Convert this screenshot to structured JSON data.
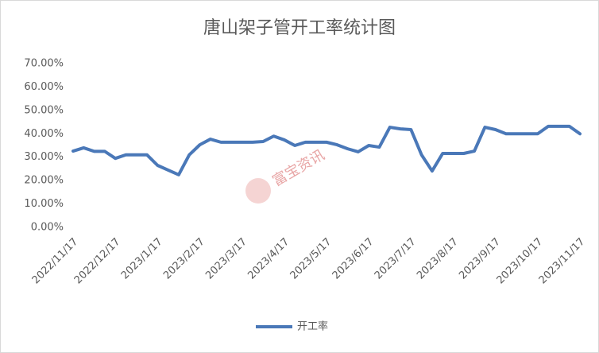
{
  "chart_data": {
    "type": "line",
    "title": "唐山架子管开工率统计图",
    "watermark": "富宝资讯",
    "categories": [
      "2022/11/17",
      null,
      null,
      null,
      "2022/12/17",
      null,
      null,
      null,
      "2023/1/17",
      null,
      null,
      null,
      "2023/2/17",
      null,
      null,
      null,
      "2023/3/17",
      null,
      null,
      null,
      "2023/4/17",
      null,
      null,
      null,
      "2023/5/17",
      null,
      null,
      null,
      "2023/6/17",
      null,
      null,
      null,
      "2023/7/17",
      null,
      null,
      null,
      "2023/8/17",
      null,
      null,
      null,
      "2023/9/17",
      null,
      null,
      null,
      "2023/10/17",
      null,
      null,
      null,
      "2023/11/17"
    ],
    "series": [
      {
        "name": "开工率",
        "color": "#4a78b8",
        "values": [
          32.6,
          34,
          32.5,
          32.5,
          29.5,
          31,
          31,
          31,
          26.5,
          24.5,
          22.5,
          31,
          35.3,
          37.7,
          36.4,
          36.4,
          36.4,
          36.4,
          36.7,
          39,
          37.4,
          35,
          36.4,
          36.4,
          36.4,
          35.3,
          33.6,
          32.3,
          35,
          34.3,
          42.8,
          42.1,
          41.8,
          31,
          24.1,
          31.6,
          31.6,
          31.6,
          32.6,
          42.8,
          41.8,
          40,
          40,
          40,
          40,
          43.2,
          43.2,
          43.2,
          40
        ]
      }
    ],
    "ylim": [
      0,
      70
    ],
    "yticks": [
      {
        "value": 0,
        "label": "0.00%"
      },
      {
        "value": 10,
        "label": "10.00%"
      },
      {
        "value": 20,
        "label": "20.00%"
      },
      {
        "value": 30,
        "label": "30.00%"
      },
      {
        "value": 40,
        "label": "40.00%"
      },
      {
        "value": 50,
        "label": "50.00%"
      },
      {
        "value": 60,
        "label": "60.00%"
      },
      {
        "value": 70,
        "label": "70.00%"
      }
    ],
    "grid": false,
    "legend": "bottom"
  }
}
